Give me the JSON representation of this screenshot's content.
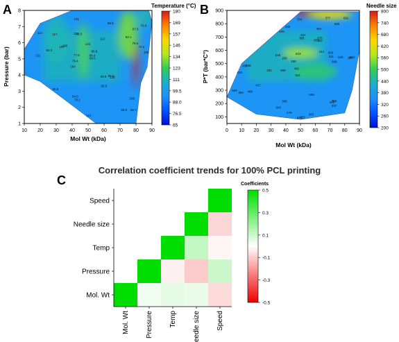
{
  "panels": {
    "A": {
      "letter": "A",
      "colorbar_title": "Temperature (°C)",
      "colorbar_ticks": [
        "180",
        "169",
        "157",
        "146",
        "134",
        "123",
        "111",
        "99.5",
        "88.0",
        "76.5",
        "65"
      ],
      "colorbar_colors": [
        "#d7191c",
        "#ff7f00",
        "#ffd700",
        "#b5e61d",
        "#33cc55",
        "#1ab1c4",
        "#1e90ff",
        "#0050ff",
        "#0010d0"
      ],
      "marker_labels": [
        "92.7",
        "111",
        "97.5",
        "104",
        "112",
        "116",
        "123",
        "130",
        "98.5",
        "86.6",
        "120",
        "114",
        "101",
        "105",
        "95.9",
        "75.6",
        "79.4",
        "84.5",
        "77.6",
        "117",
        "96.5",
        "86.5",
        "80.5",
        "106",
        "95.6",
        "110",
        "107",
        "66.3",
        "65.8",
        "74.1",
        "85.4",
        "78.2",
        "68.6",
        "93.1",
        "79.8"
      ]
    },
    "B": {
      "letter": "B",
      "colorbar_title": "Needle size",
      "colorbar_ticks": [
        "800",
        "740",
        "680",
        "620",
        "560",
        "500",
        "440",
        "380",
        "320",
        "260",
        "200"
      ],
      "colorbar_colors": [
        "#d7191c",
        "#ff7f00",
        "#ffd700",
        "#b5e61d",
        "#33cc55",
        "#1ab1c4",
        "#1e90ff",
        "#0050ff",
        "#0010d0"
      ],
      "marker_labels": [
        "463",
        "357",
        "489",
        "521",
        "548",
        "602",
        "418",
        "365",
        "299",
        "331",
        "344",
        "325",
        "398",
        "377",
        "412",
        "437",
        "466",
        "503",
        "530",
        "569",
        "285",
        "311",
        "356",
        "392",
        "420",
        "451",
        "480",
        "515",
        "558",
        "600",
        "640",
        "691",
        "248",
        "263",
        "279",
        "302",
        "337",
        "370",
        "405",
        "445",
        "588",
        "623",
        "656",
        "704"
      ]
    },
    "C": {
      "letter": "C",
      "heat_legend_title": "Coefficients",
      "heat_legend_ticks": [
        "0.5",
        "0.3",
        "0.1",
        "-0.1",
        "-0.3",
        "-0.5"
      ]
    }
  },
  "chart_data": [
    {
      "type": "heatmap",
      "title": "",
      "xlabel": "Mol Wt (kDa)",
      "ylabel": "Pressure (bar)",
      "xlim": [
        10,
        90
      ],
      "ylim": [
        1,
        8
      ],
      "xticks": [
        "10",
        "20",
        "30",
        "40",
        "50",
        "60",
        "70",
        "80",
        "90"
      ],
      "yticks": [
        "1",
        "2",
        "3",
        "4",
        "5",
        "6",
        "7",
        "8"
      ],
      "colorbar": {
        "title": "Temperature (°C)",
        "range": [
          65,
          180
        ]
      },
      "boundary": [
        [
          10,
          4
        ],
        [
          10,
          5.6
        ],
        [
          20,
          7.2
        ],
        [
          40,
          8
        ],
        [
          80,
          8
        ],
        [
          88,
          8
        ],
        [
          90,
          7.3
        ],
        [
          87,
          4.5
        ],
        [
          83,
          3.5
        ],
        [
          80,
          1
        ],
        [
          70,
          1
        ],
        [
          55,
          1
        ],
        [
          35,
          2.5
        ],
        [
          20,
          3.6
        ]
      ],
      "hotspots": [
        {
          "x": 80,
          "y": 4.8,
          "value": 180,
          "rx": 1.5,
          "ry": 1.6
        },
        {
          "x": 75,
          "y": 6.5,
          "value": 130,
          "rx": 6,
          "ry": 1.5
        },
        {
          "x": 47,
          "y": 5.5,
          "value": 125,
          "rx": 3,
          "ry": 1.8
        },
        {
          "x": 30,
          "y": 6.2,
          "value": 110,
          "rx": 8,
          "ry": 1.5
        },
        {
          "x": 85,
          "y": 7.6,
          "value": 112,
          "rx": 4,
          "ry": 0.6
        }
      ]
    },
    {
      "type": "heatmap",
      "title": "",
      "xlabel": "Mol Wt (kDa)",
      "ylabel": "P*T (bar*C°)",
      "xlim": [
        0,
        90
      ],
      "ylim": [
        50,
        900
      ],
      "xticks": [
        "0",
        "10",
        "20",
        "30",
        "40",
        "50",
        "60",
        "70",
        "80",
        "90"
      ],
      "yticks": [
        "100",
        "200",
        "300",
        "400",
        "500",
        "600",
        "700",
        "800",
        "900"
      ],
      "colorbar": {
        "title": "Needle size",
        "range": [
          200,
          800
        ]
      },
      "boundary": [
        [
          0,
          250
        ],
        [
          10,
          500
        ],
        [
          50,
          890
        ],
        [
          90,
          890
        ],
        [
          90,
          600
        ],
        [
          85,
          300
        ],
        [
          80,
          130
        ],
        [
          50,
          80
        ],
        [
          20,
          120
        ]
      ],
      "hotspots": [
        {
          "x": 55,
          "y": 880,
          "value": 800,
          "rx": 8,
          "ry": 25
        },
        {
          "x": 70,
          "y": 870,
          "value": 640,
          "rx": 15,
          "ry": 35
        },
        {
          "x": 50,
          "y": 580,
          "value": 560,
          "rx": 12,
          "ry": 40
        },
        {
          "x": 60,
          "y": 440,
          "value": 480,
          "rx": 15,
          "ry": 60
        }
      ]
    },
    {
      "type": "heatmap",
      "title": "Correlation coefficient trends for 100% PCL printing",
      "xlabel": "",
      "ylabel": "",
      "x": [
        "Mol. Wt",
        "Pressure",
        "Temp",
        "Needle size",
        "Speed"
      ],
      "y": [
        "Speed",
        "Needle size",
        "Temp",
        "Pressure",
        "Mol. Wt"
      ],
      "colorbar": {
        "title": "Coefficients",
        "range": [
          -0.5,
          0.5
        ]
      },
      "cells": [
        [
          "",
          "",
          "",
          "",
          1
        ],
        [
          "",
          "",
          "",
          1,
          -0.08
        ],
        [
          "",
          "",
          1,
          0.12,
          -0.02
        ],
        [
          "",
          1,
          -0.03,
          -0.1,
          0.1
        ],
        [
          1,
          0.03,
          0.05,
          0.04,
          -0.07
        ]
      ]
    }
  ]
}
